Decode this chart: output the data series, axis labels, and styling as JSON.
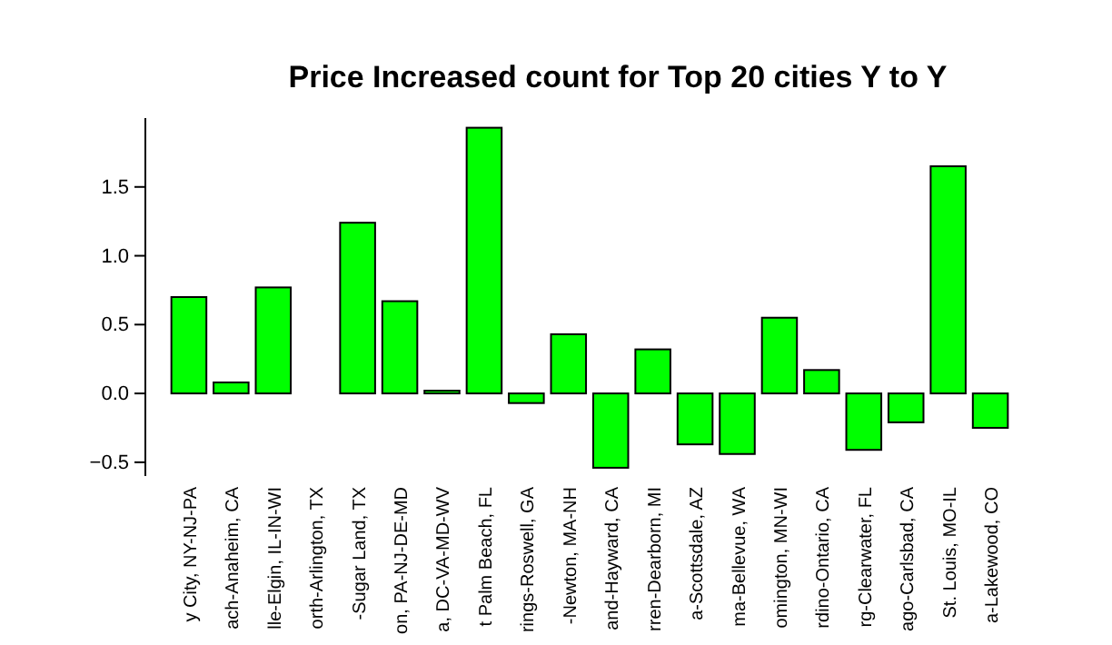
{
  "chart_data": {
    "type": "bar",
    "title": "Price Increased count for Top 20 cities Y to Y",
    "categories": [
      "y City, NY-NJ-PA",
      "ach-Anaheim, CA",
      "lle-Elgin, IL-IN-WI",
      "orth-Arlington, TX",
      "-Sugar Land, TX",
      "on, PA-NJ-DE-MD",
      "a, DC-VA-MD-WV",
      "t Palm Beach, FL",
      "rings-Roswell, GA",
      "-Newton, MA-NH",
      "and-Hayward, CA",
      "rren-Dearborn, MI",
      "a-Scottsdale, AZ",
      "ma-Bellevue, WA",
      "omington, MN-WI",
      "rdino-Ontario, CA",
      "rg-Clearwater, FL",
      "ago-Carlsbad, CA",
      "St. Louis, MO-IL",
      "a-Lakewood, CO"
    ],
    "values": [
      0.7,
      0.08,
      0.77,
      0.0,
      1.24,
      0.67,
      0.02,
      1.93,
      -0.07,
      0.43,
      -0.54,
      0.32,
      -0.37,
      -0.44,
      0.55,
      0.17,
      -0.41,
      -0.21,
      1.65,
      -0.25
    ],
    "color": "#00ff00",
    "ylim": [
      -0.6,
      2.0
    ],
    "yticks": [
      -0.5,
      {
        "value": 0,
        "label": "0.0"
      },
      0.5,
      {
        "value": 1,
        "label": "1.0"
      },
      1.5
    ],
    "grid": false
  }
}
